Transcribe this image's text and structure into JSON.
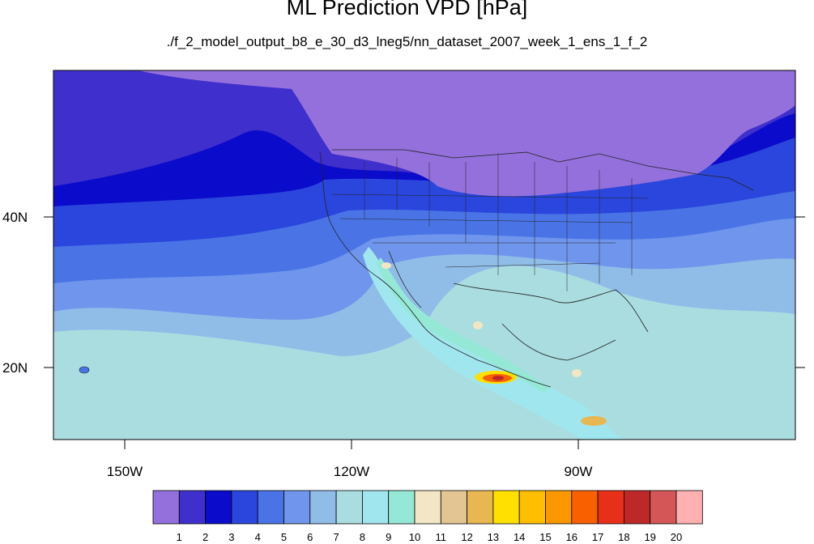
{
  "title": "ML Prediction VPD [hPa]",
  "subtitle": "./f_2_model_output_b8_e_30_d3_lneg5/nn_dataset_2007_week_1_ens_1_f_2",
  "axes": {
    "y_ticks": [
      {
        "label": "40N",
        "lat": 40
      },
      {
        "label": "20N",
        "lat": 20
      }
    ],
    "x_ticks": [
      {
        "label": "150W",
        "lon": -150
      },
      {
        "label": "120W",
        "lon": -120
      },
      {
        "label": "90W",
        "lon": -90
      }
    ]
  },
  "colorbar": {
    "labels": [
      "1",
      "2",
      "3",
      "4",
      "5",
      "6",
      "7",
      "8",
      "9",
      "10",
      "11",
      "12",
      "13",
      "14",
      "15",
      "16",
      "17",
      "18",
      "19",
      "20"
    ],
    "colors": [
      "#9370db",
      "#3f2fcc",
      "#0b0bcc",
      "#2a46dc",
      "#4a74e6",
      "#6f96ec",
      "#90bde8",
      "#aadde0",
      "#a0e6ee",
      "#95e8d6",
      "#f3e6c4",
      "#e2c592",
      "#e8b752",
      "#ffe000",
      "#ffbe00",
      "#fb9800",
      "#f86000",
      "#e83018",
      "#bd2828",
      "#d45656",
      "#ffb0b0"
    ]
  },
  "colors": {
    "land_north": "#9370db",
    "ocean_far": "#aadde0"
  }
}
